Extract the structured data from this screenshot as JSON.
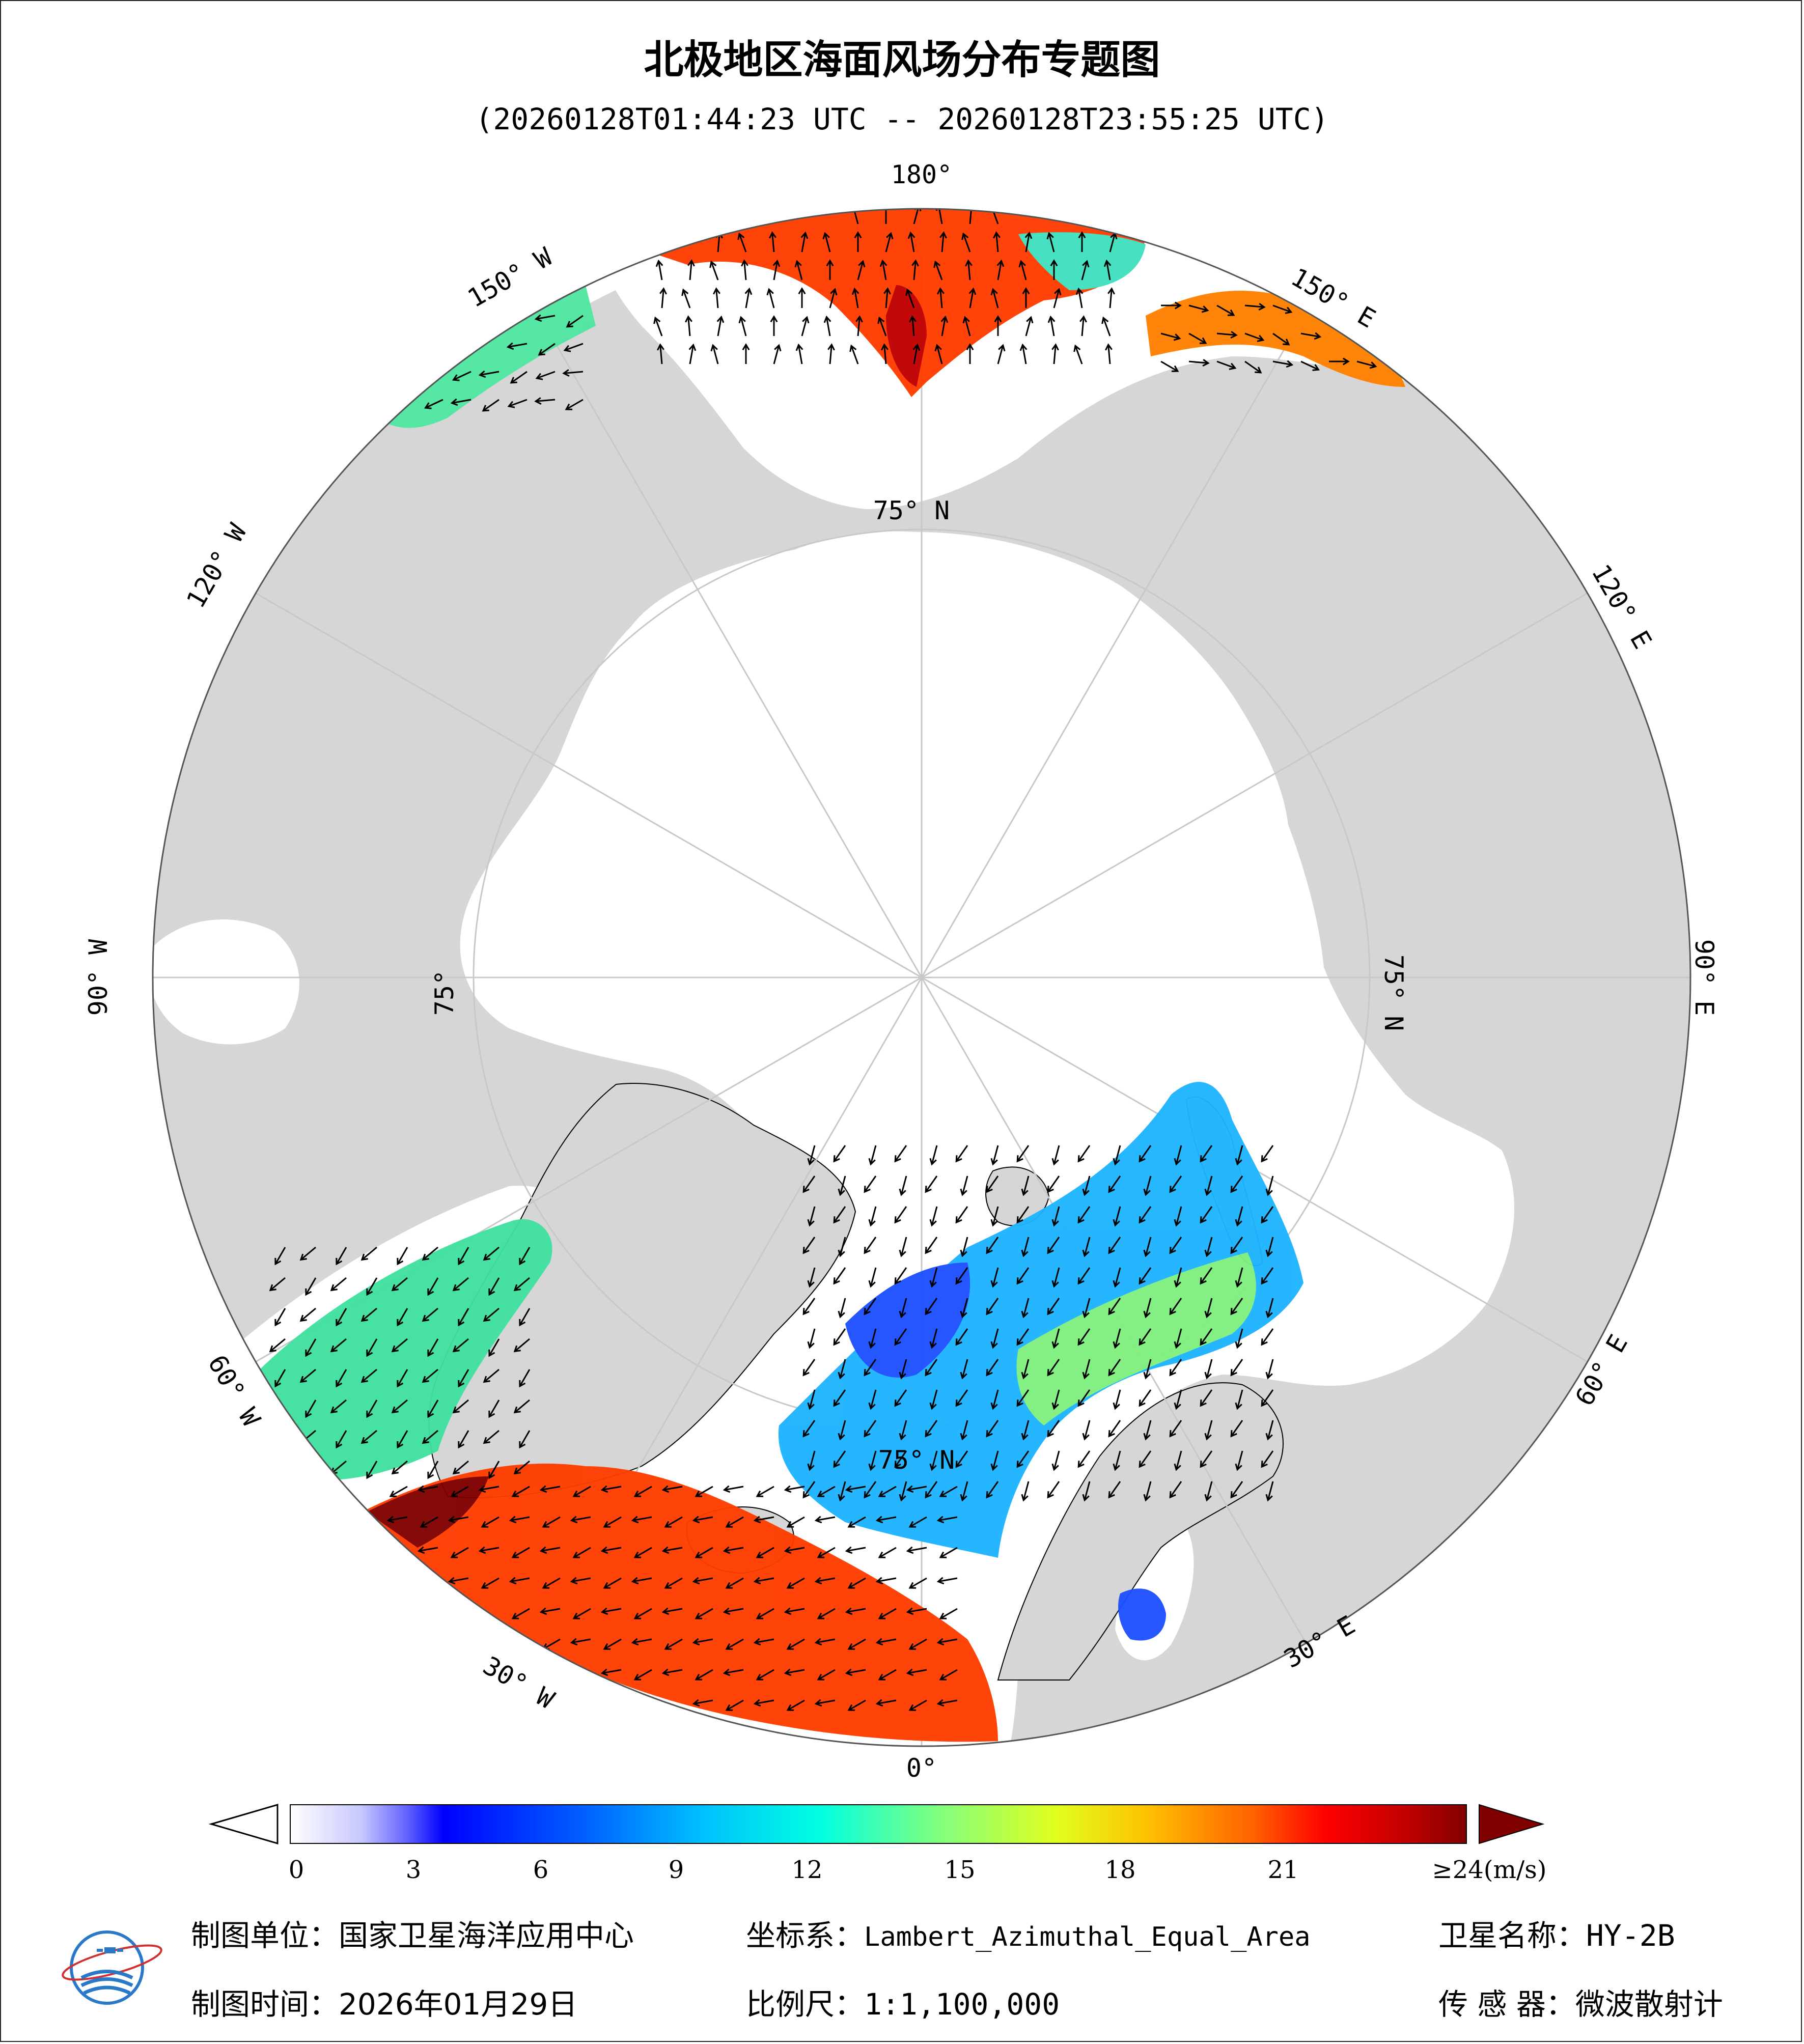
{
  "title": "北极地区海面风场分布专题图",
  "subtitle": "(20260128T01:44:23 UTC -- 20260128T23:55:25 UTC)",
  "graticule_labels": {
    "lon_180": "180°",
    "lon_150w": "150° W",
    "lon_120w": "120° W",
    "lon_90w": "90° W",
    "lon_60w": "60° W",
    "lon_30w": "30° W",
    "lon_0": "0°",
    "lon_30e": "30° E",
    "lon_60e": "60° E",
    "lon_90e": "90° E",
    "lon_120e": "120° E",
    "lon_150e": "150° E",
    "lat_75n_top": "75° N",
    "lat_75n_left": "75°",
    "lat_75n_right": "75° N",
    "lat_75n_bottom": "75° N"
  },
  "colorbar": {
    "unit_label": "≥24(m/s)",
    "ticks": [
      "0",
      "3",
      "6",
      "9",
      "12",
      "15",
      "18",
      "21"
    ],
    "tick_values": [
      0,
      3,
      6,
      9,
      12,
      15,
      18,
      21
    ],
    "min": 0,
    "max": 24,
    "colors": [
      "#ffffff",
      "#c8c8ff",
      "#6060ff",
      "#0000ff",
      "#0060ff",
      "#00c0ff",
      "#00ffe0",
      "#80ff80",
      "#e0ff20",
      "#ffc000",
      "#ff6000",
      "#ff0000",
      "#c00000",
      "#800000"
    ]
  },
  "footer": {
    "org_label": "制图单位：",
    "org_value": "国家卫星海洋应用中心",
    "crs_label": "坐标系：",
    "crs_value": "Lambert_Azimuthal_Equal_Area",
    "satellite_label": "卫星名称：",
    "satellite_value": "HY-2B",
    "date_label": "制图时间：",
    "date_value": "2026年01月29日",
    "scale_label": "比例尺：",
    "scale_value": "1:1,100,000",
    "sensor_label": "传 感 器：",
    "sensor_value": "微波散射计"
  },
  "colors": {
    "land": "#d6d6d6",
    "ocean": "#ffffff",
    "graticule": "#c8c8c8",
    "wind_low": "#1e64ff",
    "wind_mid": "#50e6c8",
    "wind_high": "#ff3c00",
    "wind_max": "#800000"
  }
}
